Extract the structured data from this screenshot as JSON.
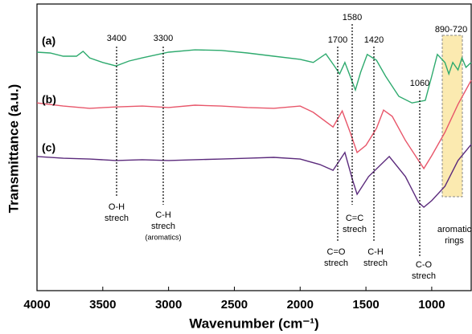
{
  "chart_data": {
    "type": "line",
    "xlabel": "Wavenumber (cm⁻¹)",
    "ylabel": "Transmittance (a.u.)",
    "xlim": [
      4000,
      700
    ],
    "ylim": [
      0,
      100
    ],
    "xticks": [
      4000,
      3500,
      3000,
      2500,
      2000,
      1500,
      1000
    ],
    "series": [
      {
        "name": "(a)",
        "color": "#2eaa6e",
        "x": [
          4000,
          3900,
          3800,
          3700,
          3650,
          3600,
          3500,
          3400,
          3300,
          3200,
          3000,
          2800,
          2600,
          2400,
          2200,
          2000,
          1900,
          1805,
          1740,
          1700,
          1660,
          1620,
          1580,
          1540,
          1490,
          1420,
          1350,
          1250,
          1150,
          1049,
          1000,
          957,
          900,
          870,
          840,
          800,
          770,
          740,
          700
        ],
        "values": [
          83.2,
          82.9,
          81.8,
          81.8,
          83.5,
          81.2,
          79.6,
          78.4,
          80.1,
          81.2,
          83.2,
          84.0,
          83.8,
          82.9,
          81.8,
          80.7,
          79.6,
          82.6,
          78.4,
          75.6,
          79.6,
          74.8,
          70.0,
          76.2,
          82.4,
          80.4,
          74.8,
          67.8,
          65.5,
          66.4,
          74.8,
          82.4,
          79.6,
          75.6,
          79.6,
          77.0,
          81.2,
          77.9,
          79.6
        ]
      },
      {
        "name": "(b)",
        "color": "#e8566a",
        "x": [
          4000,
          3800,
          3600,
          3400,
          3200,
          3000,
          2800,
          2600,
          2400,
          2200,
          2000,
          1900,
          1750,
          1680,
          1620,
          1567,
          1500,
          1420,
          1366,
          1300,
          1200,
          1100,
          1060,
          1000,
          900,
          800,
          700
        ],
        "values": [
          65.5,
          64.4,
          63.6,
          64.1,
          64.4,
          63.9,
          64.7,
          64.4,
          63.9,
          63.6,
          64.4,
          62.2,
          57.1,
          62.7,
          55.2,
          48.2,
          50.7,
          56.6,
          63.0,
          60.8,
          52.4,
          45.4,
          42.6,
          47.1,
          55.2,
          65.0,
          73.4
        ]
      },
      {
        "name": "(c)",
        "color": "#5b2a7c",
        "x": [
          4000,
          3800,
          3600,
          3400,
          3200,
          3000,
          2800,
          2600,
          2400,
          2200,
          2000,
          1850,
          1750,
          1660,
          1600,
          1567,
          1480,
          1323,
          1200,
          1100,
          1060,
          1000,
          900,
          800,
          700
        ],
        "values": [
          46.8,
          46.2,
          45.9,
          45.4,
          45.7,
          45.4,
          45.7,
          45.9,
          46.2,
          46.5,
          45.9,
          44.0,
          42.0,
          48.2,
          38.4,
          33.6,
          39.8,
          46.8,
          39.8,
          30.8,
          29.1,
          31.4,
          36.4,
          45.4,
          51.0
        ]
      }
    ],
    "annotations": [
      {
        "label": "3400",
        "text": [
          "O-H",
          "strech"
        ]
      },
      {
        "label": "3300",
        "text": [
          "C-H",
          "strech",
          "(aromatics)"
        ]
      },
      {
        "label": "1700",
        "text": [
          "C=O",
          "strech"
        ]
      },
      {
        "label": "1580",
        "text": [
          "C=C",
          "strech"
        ]
      },
      {
        "label": "1420",
        "text": [
          "C-H",
          "strech"
        ]
      },
      {
        "label": "1060",
        "text": [
          "C-O",
          "strech"
        ]
      },
      {
        "label": "890-720",
        "text": [
          "aromatic",
          "rings"
        ]
      }
    ]
  }
}
